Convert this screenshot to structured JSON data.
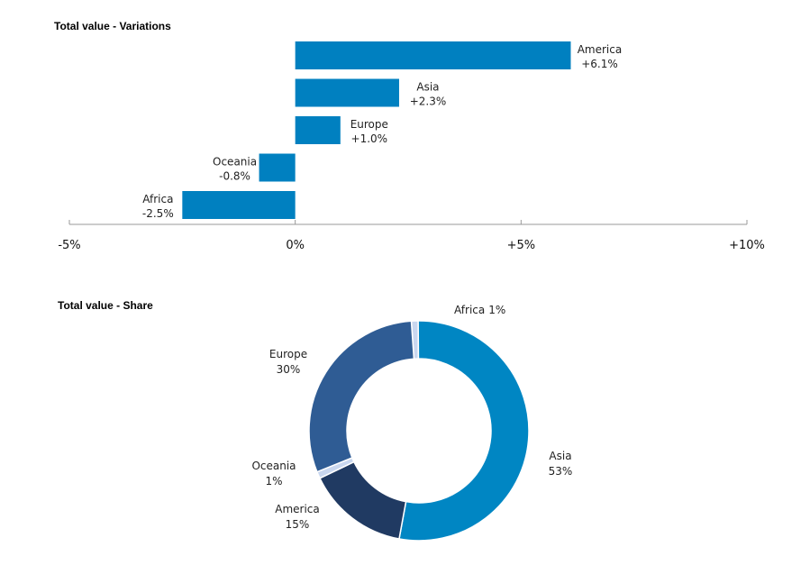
{
  "chart_data": [
    {
      "type": "bar",
      "orientation": "horizontal",
      "title": "Total value - Variations",
      "categories": [
        "America",
        "Asia",
        "Europe",
        "Oceania",
        "Africa"
      ],
      "values": [
        6.1,
        2.3,
        1.0,
        -0.8,
        -2.5
      ],
      "value_labels": [
        "+6.1%",
        "+2.3%",
        "+1.0%",
        "-0.8%",
        "-2.5%"
      ],
      "xlim": [
        -5,
        10
      ],
      "xticks": [
        -5,
        0,
        5,
        10
      ],
      "xtick_labels": [
        "-5%",
        "0%",
        "+5%",
        "+10%"
      ],
      "grid": false,
      "color": "#0080c0"
    },
    {
      "type": "pie",
      "subtype": "donut",
      "title": "Total value - Share",
      "slices": [
        {
          "label": "Africa",
          "value": 1,
          "value_label": "1%",
          "color": "#c9d7ef"
        },
        {
          "label": "Asia",
          "value": 53,
          "value_label": "53%",
          "color": "#0086c3"
        },
        {
          "label": "America",
          "value": 15,
          "value_label": "15%",
          "color": "#203a62"
        },
        {
          "label": "Oceania",
          "value": 1,
          "value_label": "1%",
          "color": "#c9d7ef"
        },
        {
          "label": "Europe",
          "value": 30,
          "value_label": "30%",
          "color": "#2f5c94"
        }
      ]
    }
  ]
}
